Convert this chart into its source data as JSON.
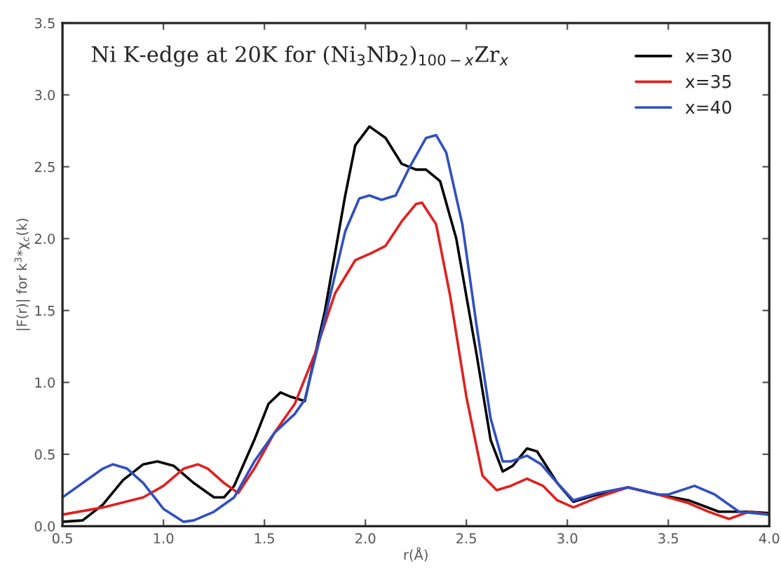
{
  "chart_data": {
    "type": "line",
    "title": "Ni K-edge at 20K for (Ni$_{3}$Nb$_{2}$)$_{100−x}$Zr$_{x}$",
    "xlabel": "r(Å)",
    "ylabel": "|F(r)| for k$^{3}$*χ$_{c}$(k)",
    "xlim": [
      0.5,
      4.0
    ],
    "xticks": [
      {
        "value": 0.5,
        "label": "0.5"
      },
      {
        "value": 1.0,
        "label": "1.0"
      },
      {
        "value": 1.5,
        "label": "1.5"
      },
      {
        "value": 2.0,
        "label": "2.0"
      },
      {
        "value": 2.5,
        "label": "2.5"
      },
      {
        "value": 3.0,
        "label": "3.0"
      },
      {
        "value": 3.5,
        "label": "3.5"
      },
      {
        "value": 4.0,
        "label": "4.0"
      }
    ],
    "ylim": [
      0,
      3.5
    ],
    "yticks": [
      {
        "value": 0,
        "label": "0.0"
      },
      {
        "value": 0.5,
        "label": "0.5"
      },
      {
        "value": 1.0,
        "label": "1.0"
      },
      {
        "value": 1.5,
        "label": "1.5"
      },
      {
        "value": 2.0,
        "label": "2.0"
      },
      {
        "value": 2.5,
        "label": "2.5"
      },
      {
        "value": 3.0,
        "label": "3.0"
      },
      {
        "value": 3.5,
        "label": "3.5"
      }
    ],
    "grid": false,
    "legend": "top right",
    "line_style": "solid",
    "marker": "none",
    "series": [
      {
        "name": "x=30",
        "color": "#000000",
        "x": [
          0.5,
          0.6,
          0.7,
          0.8,
          0.9,
          0.97,
          1.05,
          1.15,
          1.25,
          1.3,
          1.35,
          1.45,
          1.52,
          1.58,
          1.63,
          1.7,
          1.8,
          1.9,
          1.95,
          2.02,
          2.1,
          2.18,
          2.25,
          2.3,
          2.37,
          2.45,
          2.55,
          2.62,
          2.68,
          2.73,
          2.8,
          2.85,
          2.95,
          3.03,
          3.15,
          3.3,
          3.45,
          3.6,
          3.75,
          3.9,
          4.0
        ],
        "values": [
          0.03,
          0.04,
          0.15,
          0.32,
          0.43,
          0.45,
          0.42,
          0.3,
          0.2,
          0.2,
          0.28,
          0.6,
          0.85,
          0.93,
          0.9,
          0.87,
          1.5,
          2.3,
          2.65,
          2.78,
          2.7,
          2.52,
          2.48,
          2.48,
          2.4,
          2.0,
          1.2,
          0.6,
          0.38,
          0.42,
          0.54,
          0.52,
          0.3,
          0.17,
          0.22,
          0.27,
          0.22,
          0.18,
          0.1,
          0.1,
          0.09
        ]
      },
      {
        "name": "x=35",
        "color": "#e02020",
        "x": [
          0.5,
          0.7,
          0.9,
          1.0,
          1.1,
          1.17,
          1.22,
          1.3,
          1.37,
          1.45,
          1.55,
          1.65,
          1.75,
          1.85,
          1.95,
          2.03,
          2.1,
          2.18,
          2.25,
          2.28,
          2.35,
          2.42,
          2.5,
          2.58,
          2.65,
          2.72,
          2.8,
          2.88,
          2.95,
          3.03,
          3.15,
          3.3,
          3.45,
          3.6,
          3.7,
          3.8,
          3.9,
          4.0
        ],
        "values": [
          0.08,
          0.13,
          0.2,
          0.28,
          0.4,
          0.43,
          0.4,
          0.3,
          0.23,
          0.4,
          0.65,
          0.85,
          1.2,
          1.62,
          1.85,
          1.9,
          1.95,
          2.12,
          2.24,
          2.25,
          2.1,
          1.6,
          0.9,
          0.35,
          0.25,
          0.28,
          0.33,
          0.28,
          0.18,
          0.13,
          0.2,
          0.27,
          0.22,
          0.16,
          0.1,
          0.05,
          0.1,
          0.08
        ]
      },
      {
        "name": "x=40",
        "color": "#3050c0",
        "x": [
          0.5,
          0.6,
          0.7,
          0.75,
          0.82,
          0.9,
          1.0,
          1.1,
          1.15,
          1.25,
          1.35,
          1.45,
          1.55,
          1.65,
          1.7,
          1.8,
          1.9,
          1.97,
          2.02,
          2.08,
          2.15,
          2.22,
          2.3,
          2.35,
          2.4,
          2.48,
          2.55,
          2.62,
          2.68,
          2.72,
          2.8,
          2.87,
          2.95,
          3.03,
          3.15,
          3.3,
          3.45,
          3.5,
          3.63,
          3.73,
          3.85,
          4.0
        ],
        "values": [
          0.2,
          0.3,
          0.4,
          0.43,
          0.4,
          0.3,
          0.12,
          0.03,
          0.04,
          0.1,
          0.2,
          0.45,
          0.65,
          0.78,
          0.88,
          1.45,
          2.05,
          2.28,
          2.3,
          2.27,
          2.3,
          2.5,
          2.7,
          2.72,
          2.6,
          2.1,
          1.4,
          0.75,
          0.45,
          0.45,
          0.49,
          0.43,
          0.3,
          0.18,
          0.23,
          0.27,
          0.22,
          0.22,
          0.28,
          0.22,
          0.1,
          0.08
        ]
      }
    ]
  }
}
